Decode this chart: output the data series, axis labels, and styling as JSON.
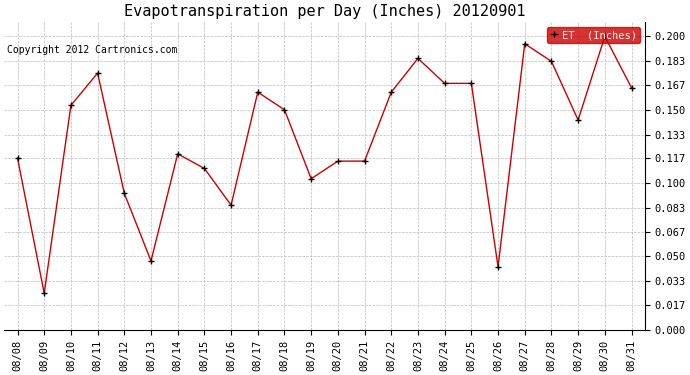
{
  "title": "Evapotranspiration per Day (Inches) 20120901",
  "copyright": "Copyright 2012 Cartronics.com",
  "legend_label": "ET  (Inches)",
  "dates": [
    "08/08",
    "08/09",
    "08/10",
    "08/11",
    "08/12",
    "08/13",
    "08/14",
    "08/15",
    "08/16",
    "08/17",
    "08/18",
    "08/19",
    "08/20",
    "08/21",
    "08/22",
    "08/23",
    "08/24",
    "08/25",
    "08/26",
    "08/27",
    "08/28",
    "08/29",
    "08/30",
    "08/31"
  ],
  "values": [
    0.117,
    0.025,
    0.153,
    0.175,
    0.093,
    0.047,
    0.12,
    0.11,
    0.085,
    0.162,
    0.15,
    0.103,
    0.115,
    0.115,
    0.162,
    0.185,
    0.168,
    0.168,
    0.043,
    0.195,
    0.183,
    0.143,
    0.2,
    0.165
  ],
  "line_color": "#cc0000",
  "marker_color": "#000000",
  "background_color": "#ffffff",
  "grid_color": "#bbbbbb",
  "ylim": [
    0.0,
    0.21
  ],
  "yticks": [
    0.0,
    0.017,
    0.033,
    0.05,
    0.067,
    0.083,
    0.1,
    0.117,
    0.133,
    0.15,
    0.167,
    0.183,
    0.2
  ],
  "title_fontsize": 11,
  "copyright_fontsize": 7,
  "tick_fontsize": 7.5,
  "legend_bg": "#cc0000",
  "legend_text_color": "#ffffff"
}
